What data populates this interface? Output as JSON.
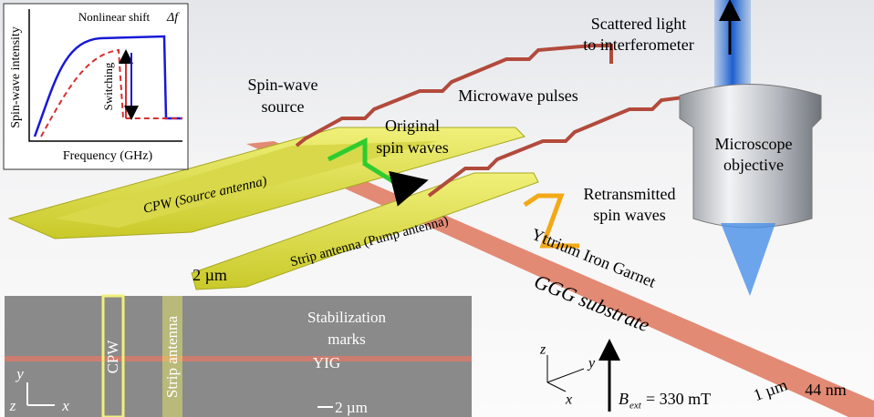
{
  "inset_plot": {
    "y_label": "Spin-wave intensity",
    "x_label": "Frequency (GHz)",
    "shift_label": "Nonlinear shift",
    "shift_symbol": "Δf",
    "switching_label": "Switching"
  },
  "labels": {
    "spin_wave_source": [
      "Spin-wave",
      "source"
    ],
    "microwave_pulses": "Microwave pulses",
    "original_spin_waves": [
      "Original",
      "spin waves"
    ],
    "scattered_light": [
      "Scattered light",
      "to interferometer"
    ],
    "microscope_objective": [
      "Microscope",
      "objective"
    ],
    "retransmitted_spin_waves": [
      "Retransmitted",
      "spin waves"
    ],
    "cpw": "CPW (Source antenna)",
    "strip_antenna": "Strip antenna (Pump antenna)",
    "yig": "Yttrium Iron Garnet",
    "substrate": "GGG substrate",
    "antenna_width": "2 µm",
    "yig_width": "1 µm",
    "yig_thickness": "44 nm"
  },
  "field": {
    "symbol": "B",
    "subscript": "ext",
    "value": "= 330 mT"
  },
  "axes": {
    "x": "x",
    "y": "y",
    "z": "z"
  },
  "sem_inset": {
    "stabilization_marks": [
      "Stabilization",
      "marks"
    ],
    "yig": "YIG",
    "cpw": "CPW",
    "strip_antenna": "Strip antenna",
    "scale_bar": "2 µm",
    "axes": {
      "x": "x",
      "y": "y",
      "z": "z"
    }
  }
}
